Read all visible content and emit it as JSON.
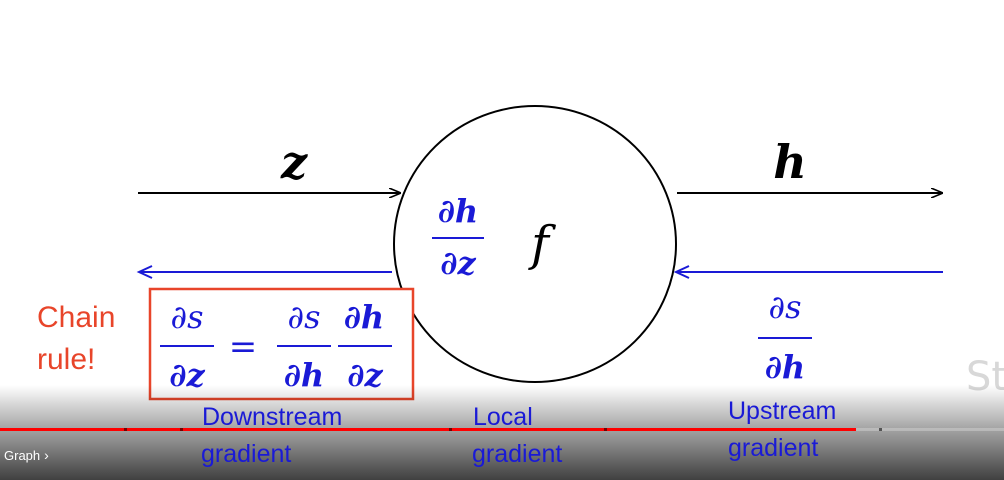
{
  "slide": {
    "input_var": "z",
    "output_var": "h",
    "function_name": "f",
    "local_gradient": {
      "numerator": "∂h",
      "denominator": "∂z"
    },
    "upstream_gradient": {
      "numerator": "∂s",
      "denominator": "∂h"
    },
    "chain_rule_label": [
      "Chain",
      "rule!"
    ],
    "chain_rule_equation": {
      "lhs": {
        "numerator": "∂s",
        "denominator": "∂z"
      },
      "equals": "=",
      "rhs": [
        {
          "numerator": "∂s",
          "denominator": "∂h"
        },
        {
          "numerator": "∂h",
          "denominator": "∂z"
        }
      ]
    },
    "labels": {
      "downstream": [
        "Downstream",
        "gradient"
      ],
      "local": [
        "Local",
        "gradient"
      ],
      "upstream": [
        "Upstream",
        "gradient"
      ]
    },
    "watermark": "St",
    "colors": {
      "black": "#000000",
      "blue": "#1a1ad6",
      "red": "#e8452a"
    }
  },
  "player": {
    "chapter_label": "Graph",
    "chapter_icon": "chevron-right-icon",
    "progress_fraction": 0.853
  }
}
